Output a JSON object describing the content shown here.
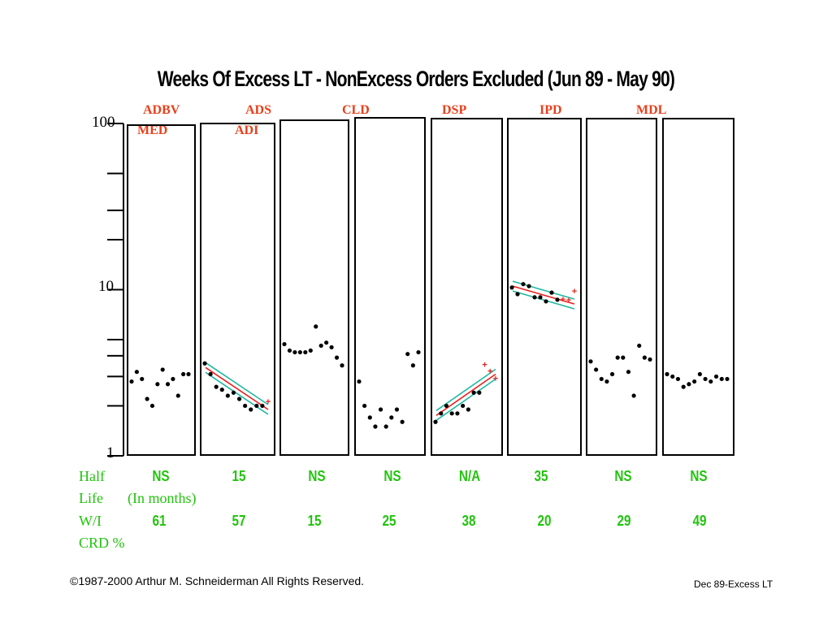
{
  "title": "Weeks Of Excess LT - NonExcess Orders Excluded (Jun 89 - May 90)",
  "colors": {
    "code": "#e8401c",
    "green": "#22c40e",
    "fit": "#e8201c",
    "band": "#20b8a0",
    "ink": "#000000"
  },
  "codes_row1": [
    "ADBV",
    "ADS",
    "CLD",
    "DSP",
    "IPD",
    "MDL"
  ],
  "codes_row2": [
    "MED",
    "ADI"
  ],
  "row_labels": {
    "half": "Half",
    "life": "Life",
    "in_months": "(In months)",
    "wi": "W/I",
    "crd": "CRD %"
  },
  "half_life": [
    "NS",
    "15",
    "NS",
    "NS",
    "N/A",
    "35",
    "NS",
    "NS"
  ],
  "wi_crd": [
    "61",
    "57",
    "15",
    "25",
    "38",
    "20",
    "29",
    "49"
  ],
  "copyright": "©1987-2000 Arthur M. Schneiderman  All Rights Reserved.",
  "footer_right": "Dec 89-Excess LT",
  "chart_data": {
    "type": "scatter",
    "scale": "log",
    "ylim": [
      1,
      100
    ],
    "y_tick_labels": [
      "100",
      "10",
      "1"
    ],
    "x": [
      1,
      2,
      3,
      4,
      5,
      6,
      7,
      8,
      9,
      10,
      11,
      12
    ],
    "panels": [
      {
        "points": [
          2.8,
          3.2,
          2.9,
          2.2,
          2.0,
          2.7,
          3.3,
          2.7,
          2.9,
          2.3,
          3.1,
          3.1
        ],
        "plus": []
      },
      {
        "points": [
          3.6,
          3.1,
          2.6,
          2.5,
          2.3,
          2.4,
          2.2,
          2.0,
          1.9,
          2.0,
          2.0
        ],
        "fit": [
          3.4,
          1.9
        ],
        "plus": [
          {
            "x": 12,
            "y": 2.1
          }
        ]
      },
      {
        "points": [
          4.7,
          4.3,
          4.2,
          4.2,
          4.2,
          4.3,
          6.0,
          4.6,
          4.8,
          4.5,
          3.9,
          3.5
        ],
        "plus": []
      },
      {
        "points": [
          2.8,
          2.0,
          1.7,
          1.5,
          1.9,
          1.5,
          1.7,
          1.9,
          1.6,
          4.1,
          3.5,
          4.2
        ],
        "plus": []
      },
      {
        "points": [
          1.6,
          1.8,
          2.0,
          1.8,
          1.8,
          2.0,
          1.9,
          2.4,
          2.4
        ],
        "fit": [
          1.75,
          3.1
        ],
        "plus": [
          {
            "x": 10,
            "y": 3.5
          },
          {
            "x": 11,
            "y": 3.2
          },
          {
            "x": 12,
            "y": 2.9
          }
        ]
      },
      {
        "points": [
          10.3,
          9.4,
          10.8,
          10.5,
          9.0,
          9.0,
          8.5,
          9.6,
          8.7
        ],
        "fit": [
          10.5,
          8.2
        ],
        "plus": [
          {
            "x": 10,
            "y": 8.7
          },
          {
            "x": 11,
            "y": 8.6
          },
          {
            "x": 12,
            "y": 9.7
          }
        ]
      },
      {
        "points": [
          3.7,
          3.3,
          2.9,
          2.8,
          3.1,
          3.9,
          3.9,
          3.2,
          2.3,
          4.6,
          3.9,
          3.8
        ],
        "plus": []
      },
      {
        "points": [
          3.1,
          3.0,
          2.9,
          2.6,
          2.7,
          2.8,
          3.1,
          2.9,
          2.8,
          3.0,
          2.9,
          2.9
        ],
        "plus": []
      }
    ]
  }
}
